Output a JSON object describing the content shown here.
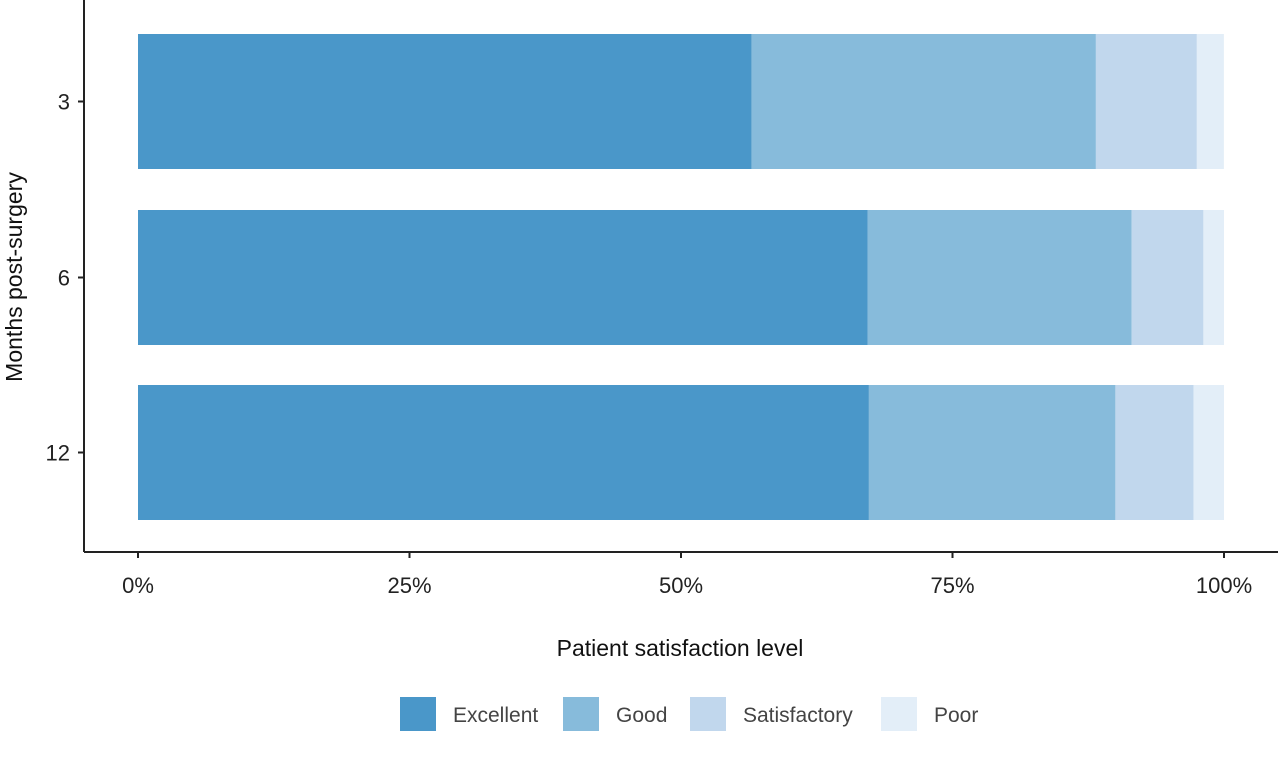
{
  "chart_data": {
    "type": "bar",
    "orientation": "horizontal",
    "stacked": true,
    "normalized": true,
    "categories": [
      "3",
      "6",
      "12"
    ],
    "series": [
      {
        "name": "Excellent",
        "values": [
          56.5,
          67.2,
          67.3
        ],
        "color": "#4a97c9"
      },
      {
        "name": "Good",
        "values": [
          31.7,
          24.3,
          22.7
        ],
        "color": "#87bbdb"
      },
      {
        "name": "Satisfactory",
        "values": [
          9.3,
          6.6,
          7.2
        ],
        "color": "#c1d7ed"
      },
      {
        "name": "Poor",
        "values": [
          2.5,
          1.9,
          2.8
        ],
        "color": "#e3eef8"
      }
    ],
    "xlabel": "Patient satisfaction level",
    "ylabel": "Months post-surgery",
    "xticks": [
      "0%",
      "25%",
      "50%",
      "75%",
      "100%"
    ],
    "xlim": [
      0,
      100
    ],
    "grid": false,
    "legend_position": "bottom"
  }
}
